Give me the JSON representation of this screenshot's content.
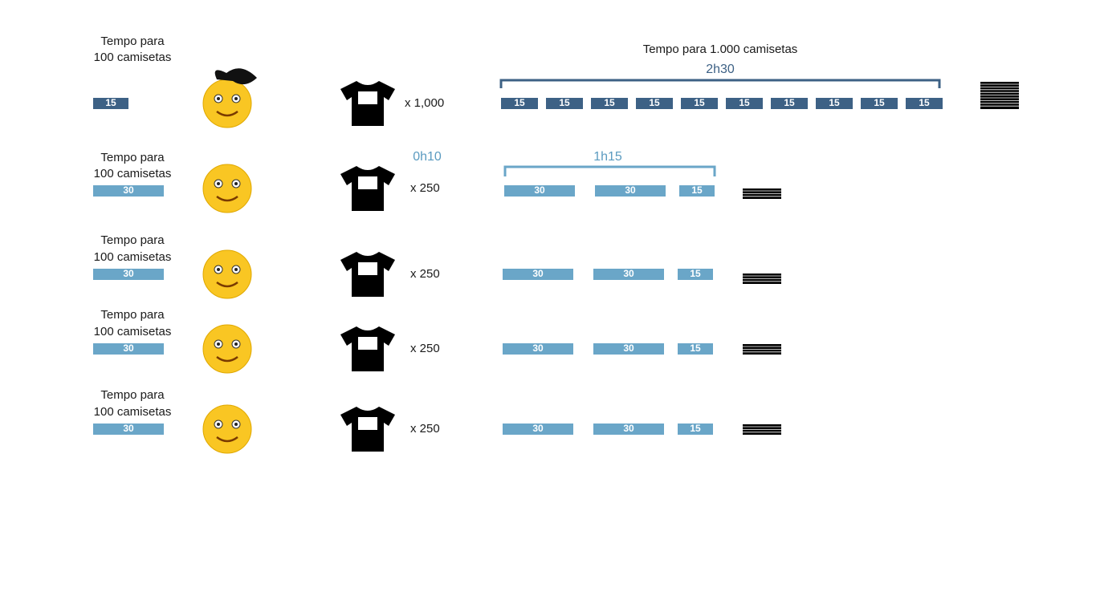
{
  "batch": {
    "title": "Tempo para 1.000 camisetas",
    "total": "2h30"
  },
  "team": {
    "setup": "0h10",
    "total": "1h15"
  },
  "rows": [
    {
      "label": [
        "Tempo para",
        "100 camisetas"
      ],
      "unit": "15",
      "quantity": "x 1,000",
      "blocks": [
        "15",
        "15",
        "15",
        "15",
        "15",
        "15",
        "15",
        "15",
        "15",
        "15"
      ]
    },
    {
      "label": [
        "Tempo para",
        "100 camisetas"
      ],
      "unit": "30",
      "quantity": "x 250",
      "blocks": [
        "30",
        "30",
        "15"
      ]
    },
    {
      "label": [
        "Tempo para",
        "100 camisetas"
      ],
      "unit": "30",
      "quantity": "x 250",
      "blocks": [
        "30",
        "30",
        "15"
      ]
    },
    {
      "label": [
        "Tempo para",
        "100 camisetas"
      ],
      "unit": "30",
      "quantity": "x 250",
      "blocks": [
        "30",
        "30",
        "15"
      ]
    },
    {
      "label": [
        "Tempo para",
        "100 camisetas"
      ],
      "unit": "30",
      "quantity": "x 250",
      "blocks": [
        "30",
        "30",
        "15"
      ]
    }
  ]
}
